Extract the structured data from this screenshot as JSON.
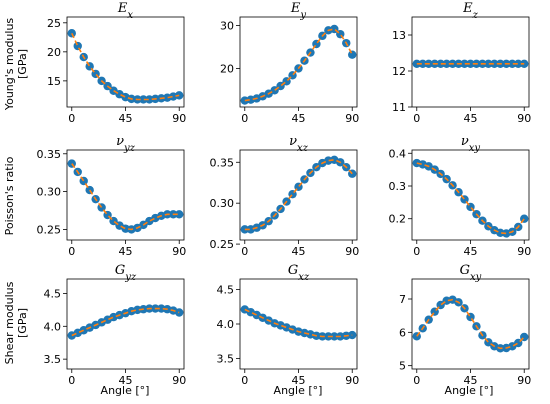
{
  "figure": {
    "xlabel": "Angle [°]",
    "row_labels": [
      [
        "Young's modulus",
        "[GPa]"
      ],
      [
        "Poisson's ratio"
      ],
      [
        "Shear modulus",
        "[GPa]"
      ]
    ]
  },
  "chart_data": [
    {
      "type": "line",
      "title_main": "E",
      "title_sub": "x",
      "x": [
        0,
        5,
        10,
        15,
        20,
        25,
        30,
        35,
        40,
        45,
        50,
        55,
        60,
        65,
        70,
        75,
        80,
        85,
        90
      ],
      "values": [
        23.2,
        21.0,
        19.1,
        17.5,
        16.2,
        15.0,
        14.1,
        13.3,
        12.7,
        12.2,
        11.9,
        11.8,
        11.8,
        11.8,
        11.9,
        12.0,
        12.1,
        12.3,
        12.5
      ],
      "xticks": [
        0,
        45,
        90
      ],
      "yticks": [
        15,
        20,
        25
      ],
      "ytick_labels": [
        "15",
        "20",
        "25"
      ],
      "xlim": [
        -4,
        94
      ],
      "ylim": [
        10.5,
        26
      ]
    },
    {
      "type": "line",
      "title_main": "E",
      "title_sub": "y",
      "x": [
        0,
        5,
        10,
        15,
        20,
        25,
        30,
        35,
        40,
        45,
        50,
        55,
        60,
        65,
        70,
        75,
        80,
        85,
        90
      ],
      "values": [
        12.5,
        12.7,
        13.0,
        13.5,
        14.1,
        14.9,
        15.9,
        17.0,
        18.4,
        20.0,
        21.8,
        23.7,
        25.7,
        27.6,
        28.9,
        29.2,
        28.0,
        25.9,
        23.2
      ],
      "xticks": [
        0,
        45,
        90
      ],
      "yticks": [
        20,
        30
      ],
      "ytick_labels": [
        "20",
        "30"
      ],
      "xlim": [
        -4,
        94
      ],
      "ylim": [
        11,
        32
      ]
    },
    {
      "type": "line",
      "title_main": "E",
      "title_sub": "z",
      "x": [
        0,
        5,
        10,
        15,
        20,
        25,
        30,
        35,
        40,
        45,
        50,
        55,
        60,
        65,
        70,
        75,
        80,
        85,
        90
      ],
      "values": [
        12.2,
        12.2,
        12.2,
        12.2,
        12.2,
        12.2,
        12.2,
        12.2,
        12.2,
        12.2,
        12.2,
        12.2,
        12.2,
        12.2,
        12.2,
        12.2,
        12.2,
        12.2,
        12.2
      ],
      "xticks": [
        0,
        45,
        90
      ],
      "yticks": [
        11,
        12,
        13
      ],
      "ytick_labels": [
        "11",
        "12",
        "13"
      ],
      "xlim": [
        -4,
        94
      ],
      "ylim": [
        11,
        13.5
      ]
    },
    {
      "type": "line",
      "title_main": "ν",
      "title_sub": "yz",
      "x": [
        0,
        5,
        10,
        15,
        20,
        25,
        30,
        35,
        40,
        45,
        50,
        55,
        60,
        65,
        70,
        75,
        80,
        85,
        90
      ],
      "values": [
        0.337,
        0.326,
        0.314,
        0.302,
        0.29,
        0.279,
        0.269,
        0.261,
        0.255,
        0.251,
        0.25,
        0.252,
        0.256,
        0.261,
        0.265,
        0.268,
        0.27,
        0.27,
        0.27
      ],
      "xticks": [
        0,
        45,
        90
      ],
      "yticks": [
        0.25,
        0.3,
        0.35
      ],
      "ytick_labels": [
        "0.25",
        "0.30",
        "0.35"
      ],
      "xlim": [
        -4,
        94
      ],
      "ylim": [
        0.236,
        0.355
      ]
    },
    {
      "type": "line",
      "title_main": "ν",
      "title_sub": "xz",
      "x": [
        0,
        5,
        10,
        15,
        20,
        25,
        30,
        35,
        40,
        45,
        50,
        55,
        60,
        65,
        70,
        75,
        80,
        85,
        90
      ],
      "values": [
        0.268,
        0.268,
        0.27,
        0.273,
        0.278,
        0.285,
        0.293,
        0.302,
        0.311,
        0.32,
        0.329,
        0.337,
        0.344,
        0.349,
        0.352,
        0.353,
        0.35,
        0.344,
        0.336
      ],
      "xticks": [
        0,
        45,
        90
      ],
      "yticks": [
        0.25,
        0.3,
        0.35
      ],
      "ytick_labels": [
        "0.25",
        "0.30",
        "0.35"
      ],
      "xlim": [
        -4,
        94
      ],
      "ylim": [
        0.255,
        0.365
      ]
    },
    {
      "type": "line",
      "title_main": "ν",
      "title_sub": "xy",
      "x": [
        0,
        5,
        10,
        15,
        20,
        25,
        30,
        35,
        40,
        45,
        50,
        55,
        60,
        65,
        70,
        75,
        80,
        85,
        90
      ],
      "values": [
        0.37,
        0.366,
        0.36,
        0.35,
        0.337,
        0.321,
        0.302,
        0.281,
        0.259,
        0.236,
        0.214,
        0.194,
        0.177,
        0.165,
        0.157,
        0.155,
        0.16,
        0.175,
        0.2
      ],
      "xticks": [
        0,
        45,
        90
      ],
      "yticks": [
        0.2,
        0.3,
        0.4
      ],
      "ytick_labels": [
        "0.2",
        "0.3",
        "0.4"
      ],
      "xlim": [
        -4,
        94
      ],
      "ylim": [
        0.135,
        0.41
      ]
    },
    {
      "type": "line",
      "title_main": "G",
      "title_sub": "yz",
      "x": [
        0,
        5,
        10,
        15,
        20,
        25,
        30,
        35,
        40,
        45,
        50,
        55,
        60,
        65,
        70,
        75,
        80,
        85,
        90
      ],
      "values": [
        3.86,
        3.9,
        3.94,
        3.98,
        4.02,
        4.06,
        4.1,
        4.14,
        4.17,
        4.2,
        4.23,
        4.25,
        4.26,
        4.27,
        4.27,
        4.27,
        4.26,
        4.24,
        4.21
      ],
      "xticks": [
        0,
        45,
        90
      ],
      "yticks": [
        3.5,
        4.0,
        4.5
      ],
      "ytick_labels": [
        "3.5",
        "4.0",
        "4.5"
      ],
      "xlim": [
        -4,
        94
      ],
      "ylim": [
        3.35,
        4.72
      ]
    },
    {
      "type": "line",
      "title_main": "G",
      "title_sub": "xz",
      "x": [
        0,
        5,
        10,
        15,
        20,
        25,
        30,
        35,
        40,
        45,
        50,
        55,
        60,
        65,
        70,
        75,
        80,
        85,
        90
      ],
      "values": [
        4.21,
        4.17,
        4.13,
        4.09,
        4.05,
        4.01,
        3.98,
        3.95,
        3.92,
        3.89,
        3.87,
        3.85,
        3.83,
        3.82,
        3.82,
        3.82,
        3.82,
        3.83,
        3.84
      ],
      "xticks": [
        0,
        45,
        90
      ],
      "yticks": [
        3.5,
        4.0,
        4.5
      ],
      "ytick_labels": [
        "3.5",
        "4.0",
        "4.5"
      ],
      "xlim": [
        -4,
        94
      ],
      "ylim": [
        3.35,
        4.65
      ]
    },
    {
      "type": "line",
      "title_main": "G",
      "title_sub": "xy",
      "x": [
        0,
        5,
        10,
        15,
        20,
        25,
        30,
        35,
        40,
        45,
        50,
        55,
        60,
        65,
        70,
        75,
        80,
        85,
        90
      ],
      "values": [
        5.88,
        6.12,
        6.38,
        6.62,
        6.82,
        6.95,
        6.98,
        6.9,
        6.72,
        6.46,
        6.18,
        5.91,
        5.7,
        5.58,
        5.52,
        5.53,
        5.58,
        5.68,
        5.86
      ],
      "xticks": [
        0,
        45,
        90
      ],
      "yticks": [
        5,
        6,
        7
      ],
      "ytick_labels": [
        "5",
        "6",
        "7"
      ],
      "xlim": [
        -4,
        94
      ],
      "ylim": [
        4.9,
        7.6
      ]
    }
  ]
}
